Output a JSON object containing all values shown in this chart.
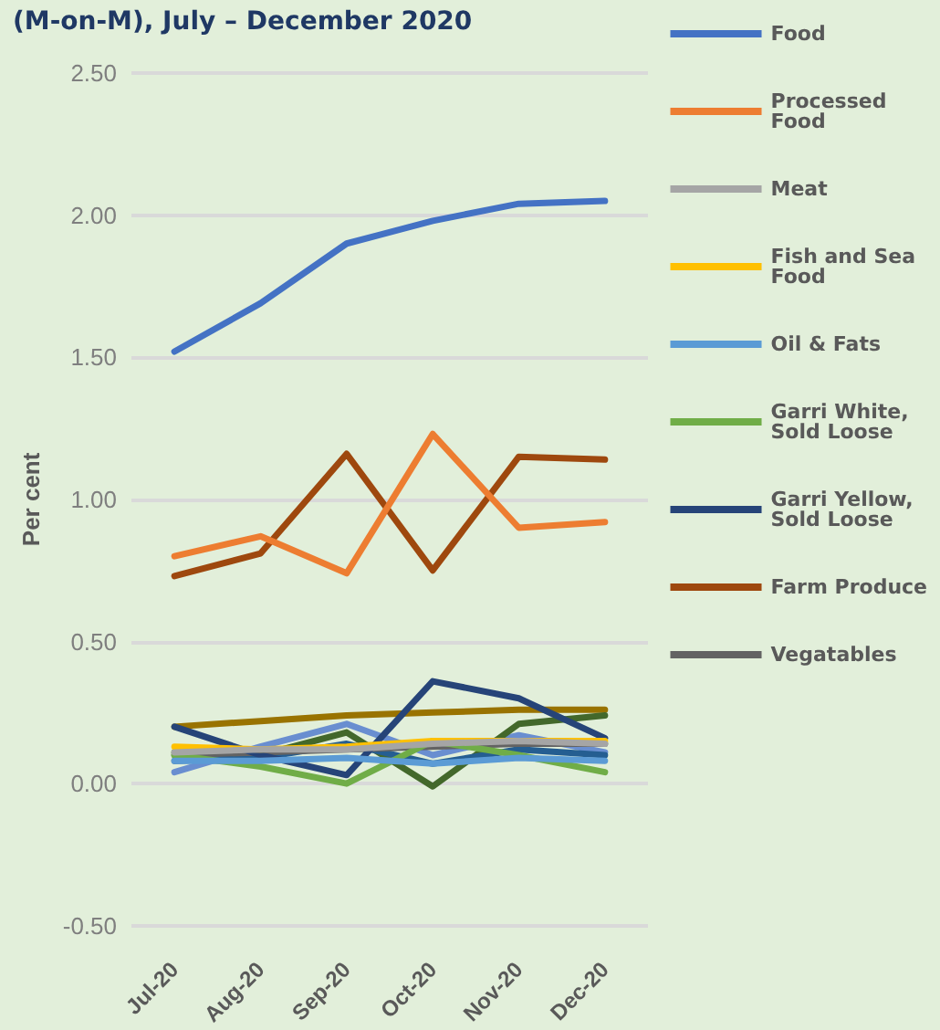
{
  "chart_data": {
    "type": "line",
    "title": "(M-on-M), July – December 2020",
    "ylabel": "Per cent",
    "categories": [
      "Jul-20",
      "Aug-20",
      "Sep-20",
      "Oct-20",
      "Nov-20",
      "Dec-20"
    ],
    "ylim": [
      -0.5,
      2.5
    ],
    "yticks": [
      {
        "value": -0.5,
        "label": "-0.50"
      },
      {
        "value": 0,
        "label": "0.00"
      },
      {
        "value": 0.5,
        "label": "0.50"
      },
      {
        "value": 1,
        "label": "1.00"
      },
      {
        "value": 1.5,
        "label": "1.50"
      },
      {
        "value": 2,
        "label": "2.00"
      },
      {
        "value": 2.5,
        "label": "2.50"
      }
    ],
    "grid": "y",
    "legend": "right",
    "marker": "none",
    "line_style": "solid",
    "series": [
      {
        "name": "Food",
        "color": "#4472c4",
        "values": [
          1.52,
          1.69,
          1.9,
          1.98,
          2.04,
          2.05
        ]
      },
      {
        "name": "Processed Food",
        "color": "#ed7d31",
        "values": [
          0.8,
          0.87,
          0.74,
          1.23,
          0.9,
          0.92
        ]
      },
      {
        "name": "Meat",
        "color": "#a5a5a5",
        "values": [
          0.11,
          0.12,
          0.12,
          0.14,
          0.15,
          0.14
        ]
      },
      {
        "name": "Fish and Sea Food",
        "color": "#ffc000",
        "values": [
          0.13,
          0.12,
          0.13,
          0.15,
          0.15,
          0.15
        ]
      },
      {
        "name": "Oil & Fats",
        "color": "#5b9bd5",
        "values": [
          0.08,
          0.08,
          0.09,
          0.07,
          0.09,
          0.08
        ]
      },
      {
        "name": "Garri White, Sold Loose",
        "color": "#70ad47",
        "values": [
          0.1,
          0.06,
          0.0,
          0.15,
          0.1,
          0.04
        ]
      },
      {
        "name": "Garri Yellow, Sold Loose",
        "color": "#264478",
        "values": [
          0.2,
          0.1,
          0.03,
          0.36,
          0.3,
          0.16
        ]
      },
      {
        "name": "Farm Produce",
        "color": "#9e480e",
        "values": [
          0.73,
          0.81,
          1.16,
          0.75,
          1.15,
          1.14
        ]
      },
      {
        "name": "Vegatables",
        "color": "#636363",
        "values": [
          0.1,
          0.11,
          0.12,
          0.13,
          0.14,
          0.14
        ]
      },
      {
        "color": "#255e91",
        "values": [
          0.08,
          0.09,
          0.14,
          0.07,
          0.12,
          0.1
        ]
      },
      {
        "color": "#43682b",
        "values": [
          0.11,
          0.1,
          0.18,
          -0.01,
          0.21,
          0.24
        ]
      },
      {
        "color": "#698ed0",
        "values": [
          0.04,
          0.13,
          0.21,
          0.1,
          0.17,
          0.11
        ]
      },
      {
        "color": "#997300",
        "values": [
          0.2,
          0.22,
          0.24,
          0.25,
          0.26,
          0.26
        ]
      }
    ]
  }
}
